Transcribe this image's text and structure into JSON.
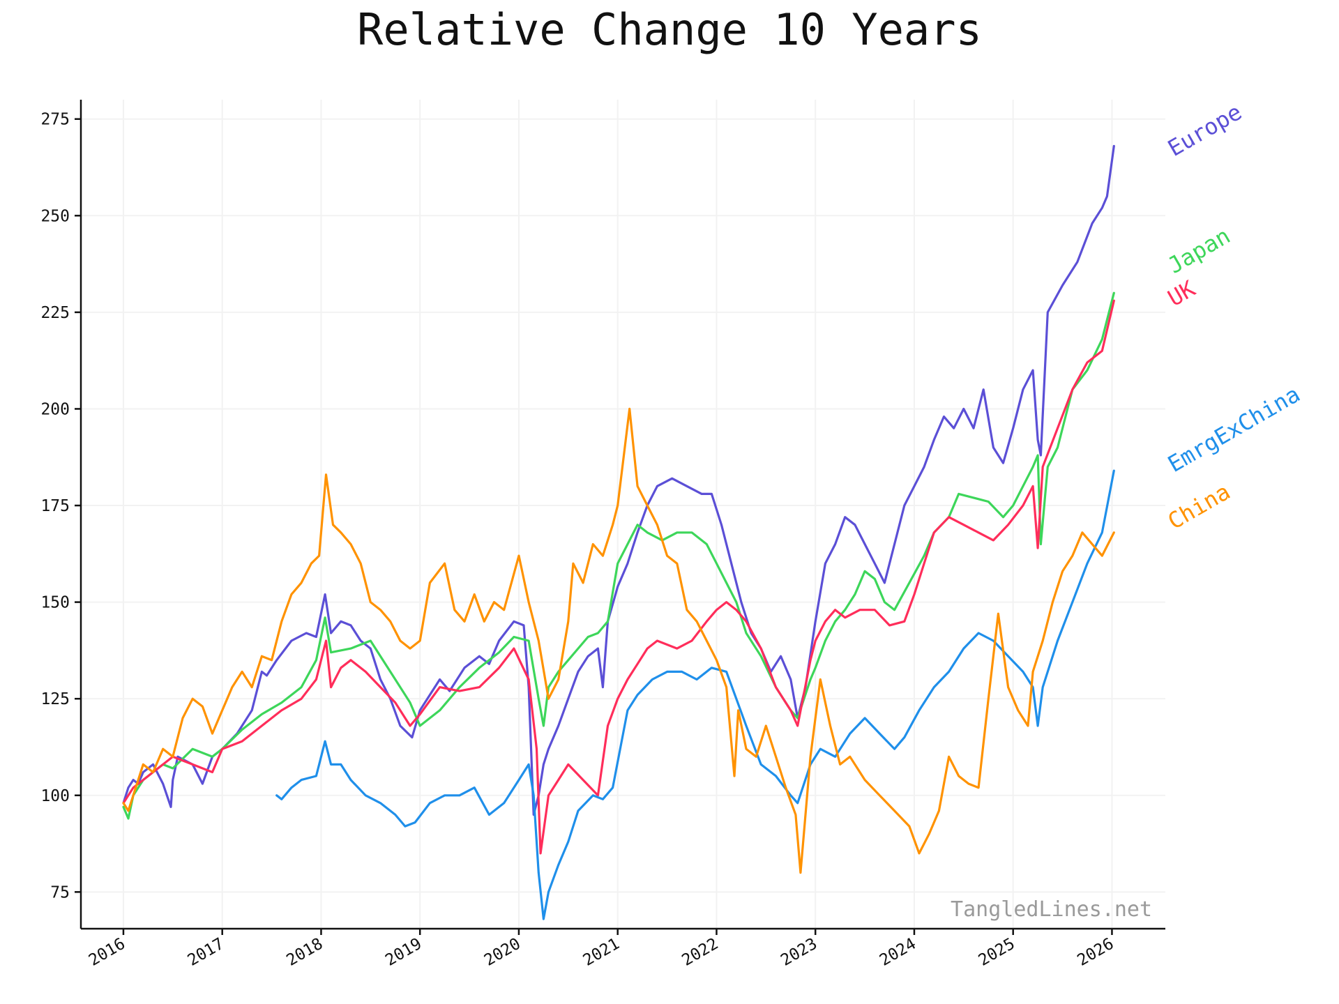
{
  "watermark": "TangledLines.net",
  "chart_data": {
    "type": "line",
    "title": "Relative Change 10 Years",
    "xlabel": "",
    "ylabel": "",
    "x_ticks": [
      "2016",
      "2017",
      "2018",
      "2019",
      "2020",
      "2021",
      "2022",
      "2023",
      "2024",
      "2025",
      "2026"
    ],
    "y_ticks": [
      75,
      100,
      125,
      150,
      175,
      200,
      225,
      250,
      275
    ],
    "xlim": [
      2015.57,
      2026.54
    ],
    "ylim": [
      65.5,
      280
    ],
    "grid": true,
    "legend": "inline labels at right end of lines",
    "series": [
      {
        "name": "Europe",
        "color": "#5b4fd6",
        "x": [
          2016.0,
          2016.05,
          2016.1,
          2016.15,
          2016.2,
          2016.3,
          2016.4,
          2016.48,
          2016.5,
          2016.55,
          2016.7,
          2016.8,
          2016.9,
          2017.0,
          2017.15,
          2017.3,
          2017.4,
          2017.45,
          2017.55,
          2017.7,
          2017.85,
          2017.95,
          2018.04,
          2018.1,
          2018.2,
          2018.3,
          2018.4,
          2018.5,
          2018.6,
          2018.7,
          2018.8,
          2018.92,
          2019.0,
          2019.2,
          2019.3,
          2019.45,
          2019.6,
          2019.7,
          2019.8,
          2019.95,
          2020.05,
          2020.1,
          2020.15,
          2020.2,
          2020.25,
          2020.3,
          2020.4,
          2020.5,
          2020.6,
          2020.7,
          2020.8,
          2020.85,
          2020.9,
          2021.0,
          2021.1,
          2021.2,
          2021.3,
          2021.4,
          2021.55,
          2021.7,
          2021.85,
          2021.95,
          2022.05,
          2022.15,
          2022.25,
          2022.35,
          2022.45,
          2022.55,
          2022.65,
          2022.75,
          2022.82,
          2022.9,
          2023.0,
          2023.1,
          2023.2,
          2023.3,
          2023.4,
          2023.5,
          2023.6,
          2023.7,
          2023.8,
          2023.9,
          2024.0,
          2024.1,
          2024.2,
          2024.3,
          2024.4,
          2024.5,
          2024.6,
          2024.7,
          2024.8,
          2024.9,
          2025.0,
          2025.1,
          2025.2,
          2025.25,
          2025.28,
          2025.35,
          2025.5,
          2025.65,
          2025.8,
          2025.9,
          2025.95,
          2026.02
        ],
        "values": [
          98,
          102,
          104,
          103,
          106,
          108,
          103,
          97,
          104,
          110,
          108,
          103,
          110,
          112,
          116,
          122,
          132,
          131,
          135,
          140,
          142,
          141,
          152,
          142,
          145,
          144,
          140,
          138,
          130,
          125,
          118,
          115,
          122,
          130,
          127,
          133,
          136,
          134,
          140,
          145,
          144,
          128,
          95,
          100,
          108,
          112,
          118,
          125,
          132,
          136,
          138,
          128,
          145,
          154,
          160,
          168,
          175,
          180,
          182,
          180,
          178,
          178,
          170,
          160,
          150,
          142,
          138,
          132,
          136,
          130,
          120,
          128,
          145,
          160,
          165,
          172,
          170,
          165,
          160,
          155,
          165,
          175,
          180,
          185,
          192,
          198,
          195,
          200,
          195,
          205,
          190,
          186,
          195,
          205,
          210,
          192,
          188,
          225,
          232,
          238,
          248,
          252,
          255,
          268
        ]
      },
      {
        "name": "Japan",
        "color": "#3dd65a",
        "x": [
          2016.0,
          2016.05,
          2016.1,
          2016.2,
          2016.3,
          2016.4,
          2016.5,
          2016.7,
          2016.9,
          2017.0,
          2017.2,
          2017.4,
          2017.6,
          2017.8,
          2017.95,
          2018.04,
          2018.1,
          2018.3,
          2018.5,
          2018.7,
          2018.9,
          2019.0,
          2019.2,
          2019.4,
          2019.6,
          2019.8,
          2019.95,
          2020.1,
          2020.2,
          2020.25,
          2020.3,
          2020.4,
          2020.5,
          2020.6,
          2020.7,
          2020.8,
          2020.9,
          2021.0,
          2021.1,
          2021.2,
          2021.3,
          2021.45,
          2021.6,
          2021.75,
          2021.9,
          2022.0,
          2022.1,
          2022.2,
          2022.3,
          2022.45,
          2022.6,
          2022.75,
          2022.82,
          2022.95,
          2023.0,
          2023.1,
          2023.2,
          2023.3,
          2023.4,
          2023.5,
          2023.6,
          2023.7,
          2023.8,
          2023.95,
          2024.1,
          2024.2,
          2024.35,
          2024.45,
          2024.6,
          2024.75,
          2024.9,
          2025.0,
          2025.1,
          2025.2,
          2025.25,
          2025.28,
          2025.35,
          2025.45,
          2025.6,
          2025.75,
          2025.9,
          2026.02
        ],
        "values": [
          97,
          94,
          100,
          104,
          106,
          108,
          107,
          112,
          110,
          112,
          117,
          121,
          124,
          128,
          135,
          146,
          137,
          138,
          140,
          132,
          124,
          118,
          122,
          128,
          133,
          137,
          141,
          140,
          125,
          118,
          128,
          132,
          135,
          138,
          141,
          142,
          145,
          160,
          165,
          170,
          168,
          166,
          168,
          168,
          165,
          160,
          155,
          150,
          142,
          136,
          128,
          122,
          120,
          130,
          133,
          140,
          145,
          148,
          152,
          158,
          156,
          150,
          148,
          155,
          162,
          168,
          172,
          178,
          177,
          176,
          172,
          175,
          180,
          185,
          188,
          165,
          185,
          190,
          205,
          210,
          218,
          230
        ]
      },
      {
        "name": "UK",
        "color": "#ff2d5a",
        "x": [
          2016.0,
          2016.05,
          2016.1,
          2016.2,
          2016.3,
          2016.4,
          2016.5,
          2016.7,
          2016.9,
          2017.0,
          2017.2,
          2017.4,
          2017.6,
          2017.8,
          2017.95,
          2018.05,
          2018.1,
          2018.2,
          2018.3,
          2018.45,
          2018.6,
          2018.75,
          2018.9,
          2019.0,
          2019.2,
          2019.4,
          2019.6,
          2019.8,
          2019.95,
          2020.1,
          2020.18,
          2020.22,
          2020.3,
          2020.4,
          2020.5,
          2020.65,
          2020.8,
          2020.9,
          2021.0,
          2021.1,
          2021.2,
          2021.3,
          2021.4,
          2021.6,
          2021.75,
          2021.9,
          2022.0,
          2022.1,
          2022.2,
          2022.3,
          2022.45,
          2022.6,
          2022.75,
          2022.82,
          2022.95,
          2023.0,
          2023.1,
          2023.2,
          2023.3,
          2023.45,
          2023.6,
          2023.75,
          2023.9,
          2024.0,
          2024.1,
          2024.2,
          2024.35,
          2024.5,
          2024.65,
          2024.8,
          2024.95,
          2025.1,
          2025.2,
          2025.25,
          2025.3,
          2025.45,
          2025.6,
          2025.75,
          2025.9,
          2026.02
        ],
        "values": [
          98,
          100,
          102,
          104,
          106,
          108,
          110,
          108,
          106,
          112,
          114,
          118,
          122,
          125,
          130,
          140,
          128,
          133,
          135,
          132,
          128,
          124,
          118,
          121,
          128,
          127,
          128,
          133,
          138,
          130,
          112,
          85,
          100,
          104,
          108,
          104,
          100,
          118,
          125,
          130,
          134,
          138,
          140,
          138,
          140,
          145,
          148,
          150,
          148,
          145,
          138,
          128,
          122,
          118,
          135,
          140,
          145,
          148,
          146,
          148,
          148,
          144,
          145,
          152,
          160,
          168,
          172,
          170,
          168,
          166,
          170,
          175,
          180,
          164,
          185,
          195,
          205,
          212,
          215,
          228
        ]
      },
      {
        "name": "EmrgExChina",
        "color": "#1f8fea",
        "x": [
          2017.55,
          2017.6,
          2017.7,
          2017.8,
          2017.95,
          2018.04,
          2018.1,
          2018.2,
          2018.3,
          2018.45,
          2018.6,
          2018.75,
          2018.85,
          2018.95,
          2019.1,
          2019.25,
          2019.4,
          2019.55,
          2019.7,
          2019.85,
          2020.0,
          2020.1,
          2020.15,
          2020.2,
          2020.25,
          2020.3,
          2020.4,
          2020.5,
          2020.6,
          2020.75,
          2020.85,
          2020.95,
          2021.1,
          2021.2,
          2021.35,
          2021.5,
          2021.65,
          2021.8,
          2021.95,
          2022.1,
          2022.2,
          2022.3,
          2022.45,
          2022.6,
          2022.75,
          2022.82,
          2022.95,
          2023.05,
          2023.2,
          2023.35,
          2023.5,
          2023.65,
          2023.8,
          2023.9,
          2024.05,
          2024.2,
          2024.35,
          2024.5,
          2024.65,
          2024.8,
          2024.95,
          2025.1,
          2025.2,
          2025.25,
          2025.3,
          2025.45,
          2025.6,
          2025.75,
          2025.9,
          2026.02
        ],
        "values": [
          100,
          99,
          102,
          104,
          105,
          114,
          108,
          108,
          104,
          100,
          98,
          95,
          92,
          93,
          98,
          100,
          100,
          102,
          95,
          98,
          104,
          108,
          100,
          80,
          68,
          75,
          82,
          88,
          96,
          100,
          99,
          102,
          122,
          126,
          130,
          132,
          132,
          130,
          133,
          132,
          125,
          118,
          108,
          105,
          100,
          98,
          108,
          112,
          110,
          116,
          120,
          116,
          112,
          115,
          122,
          128,
          132,
          138,
          142,
          140,
          136,
          132,
          128,
          118,
          128,
          140,
          150,
          160,
          168,
          184
        ]
      },
      {
        "name": "China",
        "color": "#ff9200",
        "x": [
          2016.0,
          2016.05,
          2016.1,
          2016.2,
          2016.3,
          2016.4,
          2016.5,
          2016.6,
          2016.7,
          2016.8,
          2016.9,
          2017.0,
          2017.1,
          2017.2,
          2017.3,
          2017.4,
          2017.5,
          2017.6,
          2017.7,
          2017.8,
          2017.9,
          2017.98,
          2018.05,
          2018.12,
          2018.2,
          2018.3,
          2018.4,
          2018.5,
          2018.6,
          2018.7,
          2018.8,
          2018.9,
          2019.0,
          2019.1,
          2019.25,
          2019.35,
          2019.45,
          2019.55,
          2019.65,
          2019.75,
          2019.85,
          2020.0,
          2020.1,
          2020.2,
          2020.3,
          2020.4,
          2020.5,
          2020.55,
          2020.65,
          2020.75,
          2020.85,
          2020.95,
          2021.0,
          2021.12,
          2021.2,
          2021.3,
          2021.4,
          2021.5,
          2021.6,
          2021.7,
          2021.8,
          2021.9,
          2022.0,
          2022.1,
          2022.18,
          2022.22,
          2022.3,
          2022.4,
          2022.5,
          2022.6,
          2022.7,
          2022.8,
          2022.85,
          2022.95,
          2023.05,
          2023.15,
          2023.25,
          2023.35,
          2023.5,
          2023.65,
          2023.8,
          2023.95,
          2024.05,
          2024.15,
          2024.25,
          2024.35,
          2024.45,
          2024.55,
          2024.65,
          2024.75,
          2024.85,
          2024.95,
          2025.05,
          2025.15,
          2025.2,
          2025.3,
          2025.4,
          2025.5,
          2025.6,
          2025.7,
          2025.8,
          2025.9,
          2026.02
        ],
        "values": [
          98,
          96,
          100,
          108,
          106,
          112,
          110,
          120,
          125,
          123,
          116,
          122,
          128,
          132,
          128,
          136,
          135,
          145,
          152,
          155,
          160,
          162,
          183,
          170,
          168,
          165,
          160,
          150,
          148,
          145,
          140,
          138,
          140,
          155,
          160,
          148,
          145,
          152,
          145,
          150,
          148,
          162,
          150,
          140,
          125,
          130,
          145,
          160,
          155,
          165,
          162,
          170,
          175,
          200,
          180,
          175,
          170,
          162,
          160,
          148,
          145,
          140,
          135,
          128,
          105,
          122,
          112,
          110,
          118,
          110,
          102,
          95,
          80,
          110,
          130,
          118,
          108,
          110,
          104,
          100,
          96,
          92,
          85,
          90,
          96,
          110,
          105,
          103,
          102,
          125,
          147,
          128,
          122,
          118,
          132,
          140,
          150,
          158,
          162,
          168,
          165,
          162,
          168
        ]
      }
    ]
  }
}
